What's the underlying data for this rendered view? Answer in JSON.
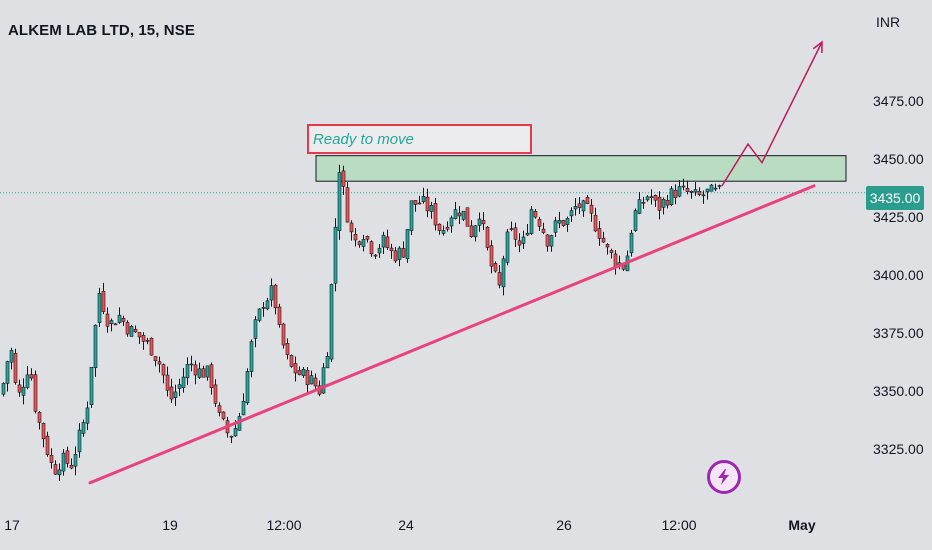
{
  "header": {
    "title": "ALKEM LAB LTD, 15, NSE",
    "currency": "INR"
  },
  "price_axis": {
    "labels": [
      "3475.00",
      "3450.00",
      "3425.00",
      "3400.00",
      "3375.00",
      "3350.00",
      "3325.00"
    ],
    "current_price": "3435.00"
  },
  "time_axis": {
    "labels": [
      {
        "text": "17",
        "bold": false
      },
      {
        "text": "19",
        "bold": false
      },
      {
        "text": "12:00",
        "bold": false
      },
      {
        "text": "24",
        "bold": false
      },
      {
        "text": "26",
        "bold": false
      },
      {
        "text": "12:00",
        "bold": false
      },
      {
        "text": "May",
        "bold": true
      }
    ]
  },
  "annotation": {
    "text": "Ready to move"
  },
  "colors": {
    "background": "#dfe0e4",
    "up_candle": "#26a69a",
    "down_candle": "#ef5350",
    "trendline": "#e8437a",
    "arrow": "#c2185b",
    "zone_fill": "#b9dcc2",
    "price_badge": "#2a9d8f",
    "bolt_icon": "#9c27b0"
  },
  "icons": {
    "events": "lightning-bolt-icon",
    "arrow": "arrow-up-right-icon"
  },
  "chart_data": {
    "type": "candlestick",
    "title": "ALKEM LAB LTD, 15, NSE",
    "ylabel": "INR",
    "ylim": [
      3310,
      3500
    ],
    "current_price": 3435,
    "resistance_zone": [
      3440,
      3451
    ],
    "close_path": [
      [
        0,
        3348
      ],
      [
        9,
        3370
      ],
      [
        16,
        3345
      ],
      [
        28,
        3362
      ],
      [
        35,
        3340
      ],
      [
        42,
        3330
      ],
      [
        52,
        3315
      ],
      [
        60,
        3320
      ],
      [
        70,
        3318
      ],
      [
        85,
        3340
      ],
      [
        92,
        3370
      ],
      [
        98,
        3392
      ],
      [
        108,
        3378
      ],
      [
        118,
        3382
      ],
      [
        128,
        3376
      ],
      [
        138,
        3373
      ],
      [
        150,
        3368
      ],
      [
        160,
        3360
      ],
      [
        168,
        3345
      ],
      [
        178,
        3352
      ],
      [
        188,
        3362
      ],
      [
        198,
        3358
      ],
      [
        208,
        3357
      ],
      [
        218,
        3338
      ],
      [
        228,
        3330
      ],
      [
        236,
        3335
      ],
      [
        244,
        3352
      ],
      [
        252,
        3375
      ],
      [
        262,
        3388
      ],
      [
        272,
        3393
      ],
      [
        278,
        3375
      ],
      [
        288,
        3360
      ],
      [
        298,
        3357
      ],
      [
        308,
        3355
      ],
      [
        318,
        3350
      ],
      [
        326,
        3368
      ],
      [
        332,
        3408
      ],
      [
        338,
        3446
      ],
      [
        344,
        3430
      ],
      [
        352,
        3413
      ],
      [
        362,
        3418
      ],
      [
        372,
        3410
      ],
      [
        382,
        3414
      ],
      [
        392,
        3408
      ],
      [
        402,
        3410
      ],
      [
        410,
        3430
      ],
      [
        420,
        3431
      ],
      [
        430,
        3427
      ],
      [
        440,
        3418
      ],
      [
        450,
        3426
      ],
      [
        460,
        3428
      ],
      [
        470,
        3418
      ],
      [
        478,
        3427
      ],
      [
        486,
        3410
      ],
      [
        492,
        3400
      ],
      [
        498,
        3394
      ],
      [
        504,
        3414
      ],
      [
        512,
        3418
      ],
      [
        520,
        3410
      ],
      [
        530,
        3428
      ],
      [
        538,
        3423
      ],
      [
        546,
        3415
      ],
      [
        556,
        3422
      ],
      [
        566,
        3423
      ],
      [
        576,
        3430
      ],
      [
        586,
        3427
      ],
      [
        596,
        3420
      ],
      [
        606,
        3410
      ],
      [
        616,
        3405
      ],
      [
        624,
        3403
      ],
      [
        632,
        3425
      ],
      [
        640,
        3430
      ],
      [
        648,
        3435
      ],
      [
        656,
        3428
      ],
      [
        666,
        3433
      ],
      [
        676,
        3436
      ],
      [
        686,
        3435
      ],
      [
        696,
        3433
      ],
      [
        706,
        3435
      ],
      [
        714,
        3435
      ],
      [
        720,
        3435
      ]
    ],
    "trendline": [
      [
        90,
        3310
      ],
      [
        814,
        3438
      ]
    ],
    "projection_path": [
      [
        722,
        3438
      ],
      [
        748,
        3456
      ],
      [
        762,
        3448
      ],
      [
        822,
        3500
      ]
    ]
  }
}
